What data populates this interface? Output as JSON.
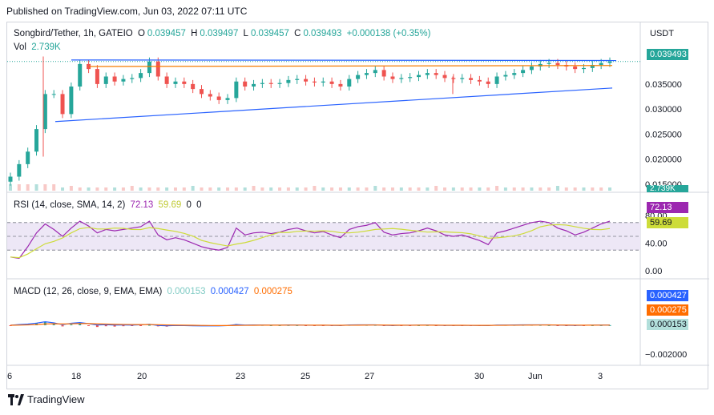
{
  "published": "Published on TradingView.com, Jun 03, 2022 07:11 UTC",
  "symbol": {
    "title": "Songbird/Tether, 1h, GATEIO",
    "o_label": "O",
    "o": "0.039457",
    "h_label": "H",
    "h": "0.039497",
    "l_label": "L",
    "l": "0.039457",
    "c_label": "C",
    "c": "0.039493",
    "change": "+0.000138 (+0.35%)",
    "currency": "USDT"
  },
  "volume": {
    "label": "Vol",
    "value": "2.739K",
    "tag": "2.739K"
  },
  "rsi": {
    "legend": "RSI (14, close, SMA, 14, 2)",
    "value": "72.13",
    "sma": "59.69",
    "extra1": "0",
    "extra2": "0",
    "axis": [
      "80.00",
      "40.00",
      "0.00"
    ],
    "colors": {
      "rsi": "#9c27b0",
      "sma": "#cddc39",
      "band": "#ede7f6"
    }
  },
  "macd": {
    "legend": "MACD (12, 26, close, 9, EMA, EMA)",
    "hist": "0.000153",
    "macd": "0.000427",
    "signal": "0.000275",
    "axis": [
      "−0.002000"
    ],
    "colors": {
      "macd": "#2962ff",
      "signal": "#ff6d00",
      "hist_pos": "#26a69a",
      "hist_neg": "#ef5350"
    }
  },
  "price_axis": [
    "0.035000",
    "0.030000",
    "0.025000",
    "0.020000",
    "0.015000"
  ],
  "last_price": "0.039493",
  "x_axis": [
    "6",
    "18",
    "20",
    "23",
    "25",
    "27",
    "30",
    "Jun",
    "3"
  ],
  "brand": "TradingView",
  "colors": {
    "up": "#26a69a",
    "down": "#ef5350",
    "trend_blue": "#2962ff",
    "trend_orange": "#f57c00"
  },
  "chart_data": {
    "type": "candlestick",
    "y_range": [
      0.0145,
      0.0425
    ],
    "prices_close": [
      0.0165,
      0.019,
      0.0215,
      0.026,
      0.033,
      0.033,
      0.029,
      0.0345,
      0.039,
      0.038,
      0.035,
      0.0365,
      0.0355,
      0.036,
      0.0362,
      0.0372,
      0.0395,
      0.0365,
      0.035,
      0.0355,
      0.035,
      0.034,
      0.033,
      0.0325,
      0.0318,
      0.0322,
      0.0355,
      0.0345,
      0.035,
      0.0352,
      0.035,
      0.0352,
      0.0358,
      0.036,
      0.0355,
      0.0353,
      0.0355,
      0.035,
      0.0345,
      0.036,
      0.0368,
      0.0372,
      0.0378,
      0.0365,
      0.036,
      0.0362,
      0.0364,
      0.0368,
      0.0372,
      0.0368,
      0.0362,
      0.036,
      0.0362,
      0.0358,
      0.0355,
      0.035,
      0.0365,
      0.0368,
      0.0372,
      0.0378,
      0.0385,
      0.039,
      0.0392,
      0.0388,
      0.0385,
      0.038,
      0.0382,
      0.0388,
      0.0392,
      0.0395
    ],
    "rsi_values": [
      20,
      18,
      35,
      55,
      68,
      60,
      50,
      62,
      72,
      65,
      55,
      60,
      58,
      60,
      62,
      64,
      72,
      52,
      45,
      48,
      45,
      40,
      35,
      32,
      30,
      34,
      62,
      52,
      55,
      56,
      54,
      56,
      60,
      62,
      58,
      55,
      57,
      52,
      48,
      60,
      64,
      66,
      70,
      56,
      52,
      54,
      55,
      58,
      62,
      58,
      52,
      50,
      52,
      48,
      44,
      38,
      55,
      58,
      62,
      66,
      70,
      72,
      70,
      62,
      58,
      52,
      56,
      62,
      68,
      72
    ],
    "trendlines": [
      "blue upper resistance",
      "orange horizontal",
      "blue rising support"
    ]
  }
}
